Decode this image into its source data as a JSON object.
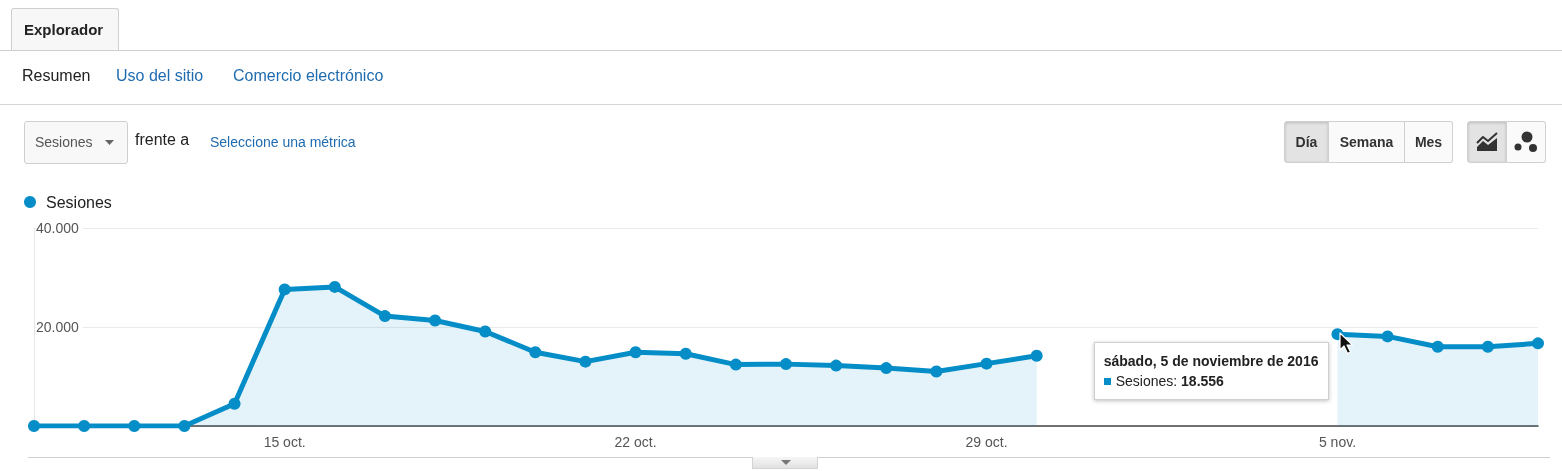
{
  "chart_data": {
    "type": "area",
    "x": [
      "2016-10-10",
      "2016-10-11",
      "2016-10-12",
      "2016-10-13",
      "2016-10-14",
      "2016-10-15",
      "2016-10-16",
      "2016-10-17",
      "2016-10-18",
      "2016-10-19",
      "2016-10-20",
      "2016-10-21",
      "2016-10-22",
      "2016-10-23",
      "2016-10-24",
      "2016-10-25",
      "2016-10-26",
      "2016-10-27",
      "2016-10-28",
      "2016-10-29",
      "2016-10-30",
      "2016-10-31",
      "2016-11-01",
      "2016-11-02",
      "2016-11-03",
      "2016-11-04",
      "2016-11-05",
      "2016-11-06",
      "2016-11-07",
      "2016-11-08",
      "2016-11-09"
    ],
    "series": [
      {
        "name": "Sesiones",
        "color": "#058dc7",
        "values": [
          0,
          0,
          0,
          0,
          4500,
          27600,
          28100,
          22200,
          21300,
          19100,
          14900,
          13000,
          14900,
          14600,
          12400,
          12500,
          12200,
          11700,
          11000,
          12600,
          14200,
          null,
          null,
          null,
          null,
          null,
          18556,
          18100,
          16000,
          16000,
          16700
        ]
      }
    ],
    "xlim": [
      "2016-10-10",
      "2016-11-09"
    ],
    "xticks": [
      {
        "value": "2016-10-15",
        "label": "15 oct."
      },
      {
        "value": "2016-10-22",
        "label": "22 oct."
      },
      {
        "value": "2016-10-29",
        "label": "29 oct."
      },
      {
        "value": "2016-11-05",
        "label": "5 nov."
      }
    ],
    "ylim": [
      0,
      40000
    ],
    "yticks": [
      {
        "value": 20000,
        "label": "20.000"
      },
      {
        "value": 40000,
        "label": "40.000"
      }
    ],
    "grid": "y",
    "legend": "top left",
    "marker": "circle",
    "annotations": [
      "Explorador",
      "Resumen",
      "Uso del sitio",
      "Comercio electrónico",
      "Sesiones",
      "frente a",
      "Seleccione una métrica",
      "Día",
      "Semana",
      "Mes",
      {
        "text": "sábado, 5 de noviembre de 2016",
        "x": "2016-11-05",
        "y": 18556
      },
      "Sesiones: 18.556"
    ]
  }
}
